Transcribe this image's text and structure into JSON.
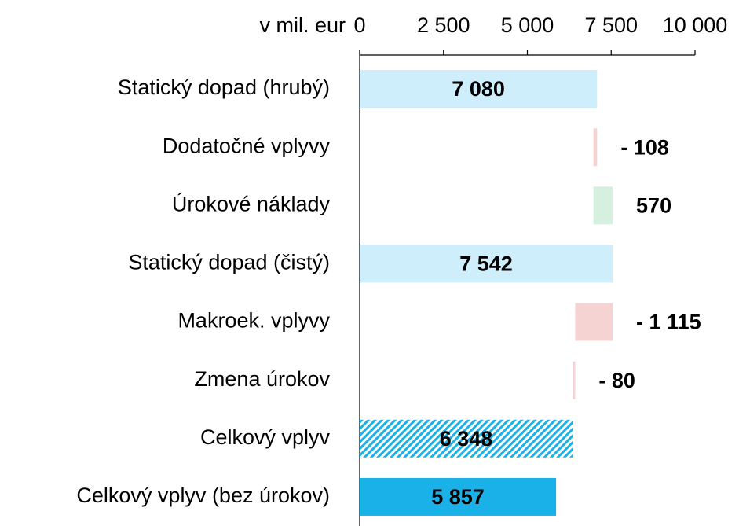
{
  "chart_data": {
    "type": "waterfall",
    "axis_label": "v mil. eur",
    "categories": [
      "Statický dopad (hrubý)",
      "Dodatočné vplyvy",
      "Úrokové náklady",
      "Statický dopad (čistý)",
      "Makroek. vplyvy",
      "Zmena úrokov",
      "Celkový vplyv",
      "Celkový vplyv (bez úrokov)"
    ],
    "values": [
      7080,
      -108,
      570,
      7542,
      -1115,
      -80,
      6348,
      5857
    ],
    "value_labels": [
      "7 080",
      "- 108",
      "570",
      "7 542",
      "- 1 115",
      "- 80",
      "6 348",
      "5 857"
    ],
    "measure": [
      "total",
      "relative",
      "relative",
      "total",
      "relative",
      "relative",
      "total",
      "total"
    ],
    "colors": [
      "#cdeefa",
      "#f6d3d3",
      "#d5f0de",
      "#cdeefa",
      "#f6d3d3",
      "#f6d3d3",
      "hatch",
      "#1ab0e8"
    ],
    "xlim": [
      0,
      10000
    ],
    "xticks": [
      0,
      {
        "value": 2500,
        "label": "2 500"
      },
      {
        "value": 5000,
        "label": "5 000"
      },
      {
        "value": 7500,
        "label": "7 500"
      },
      {
        "value": 10000,
        "label": "10 000"
      }
    ]
  }
}
